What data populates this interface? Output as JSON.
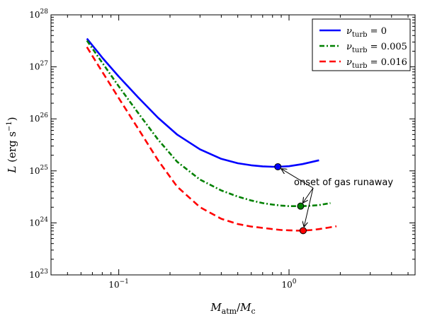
{
  "chart_data": {
    "type": "line",
    "x_scale": "log",
    "y_scale": "log",
    "xlim": [
      0.04,
      5.5
    ],
    "ylim": [
      1e+23,
      1e+28
    ],
    "xticks": [
      {
        "value": 0.1,
        "label_base": "10",
        "label_exp": "−1"
      },
      {
        "value": 1,
        "label_base": "10",
        "label_exp": "0"
      }
    ],
    "yticks": [
      {
        "value": 1e+23,
        "label_base": "10",
        "label_exp": "23"
      },
      {
        "value": 1e+24,
        "label_base": "10",
        "label_exp": "24"
      },
      {
        "value": 1e+25,
        "label_base": "10",
        "label_exp": "25"
      },
      {
        "value": 1e+26,
        "label_base": "10",
        "label_exp": "26"
      },
      {
        "value": 1e+27,
        "label_base": "10",
        "label_exp": "27"
      },
      {
        "value": 1e+28,
        "label_base": "10",
        "label_exp": "28"
      }
    ],
    "xlabel": {
      "main1": "M",
      "sub1": "atm",
      "slash": "/",
      "main2": "M",
      "sub2": "c"
    },
    "ylabel": {
      "main": "L",
      "units": "(erg s",
      "exp": "−1",
      "close": ")"
    },
    "legend_position": "top-right",
    "series": [
      {
        "name": "nu_turb = 0",
        "legend": {
          "symbol": "ν",
          "sub": "turb",
          "eq": " = 0"
        },
        "color": "#0000ff",
        "dash": "solid",
        "x": [
          0.065,
          0.08,
          0.1,
          0.13,
          0.17,
          0.22,
          0.3,
          0.4,
          0.5,
          0.6,
          0.7,
          0.8,
          0.86,
          1.0,
          1.2,
          1.5
        ],
        "y": [
          3.5e+27,
          1.5e+27,
          6.5e+26,
          2.6e+26,
          1.05e+26,
          5e+25,
          2.6e+25,
          1.7e+25,
          1.4e+25,
          1.28e+25,
          1.22e+25,
          1.2e+25,
          1.2e+25,
          1.23e+25,
          1.35e+25,
          1.6e+25
        ],
        "marker": {
          "x": 0.86,
          "y": 1.2e+25
        }
      },
      {
        "name": "nu_turb = 0.005",
        "legend": {
          "symbol": "ν",
          "sub": "turb",
          "eq": " = 0.005"
        },
        "color": "#008000",
        "dash": "dashdot",
        "x": [
          0.065,
          0.08,
          0.1,
          0.13,
          0.17,
          0.22,
          0.3,
          0.4,
          0.5,
          0.6,
          0.7,
          0.8,
          0.9,
          1.0,
          1.1,
          1.17,
          1.3,
          1.5,
          1.75
        ],
        "y": [
          3.2e+27,
          1.2e+27,
          4.2e+26,
          1.3e+26,
          4e+25,
          1.5e+25,
          6.8e+24,
          4.2e+24,
          3.2e+24,
          2.7e+24,
          2.4e+24,
          2.25e+24,
          2.15e+24,
          2.1e+24,
          2.1e+24,
          2.1e+24,
          2.12e+24,
          2.2e+24,
          2.4e+24
        ],
        "marker": {
          "x": 1.17,
          "y": 2.1e+24
        }
      },
      {
        "name": "nu_turb = 0.016",
        "legend": {
          "symbol": "ν",
          "sub": "turb",
          "eq": " = 0.016"
        },
        "color": "#ff0000",
        "dash": "dashed",
        "x": [
          0.065,
          0.08,
          0.1,
          0.13,
          0.17,
          0.22,
          0.3,
          0.4,
          0.5,
          0.6,
          0.7,
          0.8,
          0.9,
          1.0,
          1.1,
          1.21,
          1.35,
          1.5,
          1.7,
          1.9
        ],
        "y": [
          2.4e+27,
          8e+26,
          2.5e+26,
          6.5e+25,
          1.6e+25,
          5e+24,
          2e+24,
          1.2e+24,
          9.5e+23,
          8.5e+23,
          8e+23,
          7.6e+23,
          7.3e+23,
          7.2e+23,
          7.1e+23,
          7.1e+23,
          7.3e+23,
          7.6e+23,
          8.1e+23,
          8.6e+23
        ],
        "marker": {
          "x": 1.21,
          "y": 7.1e+23
        }
      }
    ],
    "annotation": {
      "text": "onset of gas runaway"
    }
  }
}
